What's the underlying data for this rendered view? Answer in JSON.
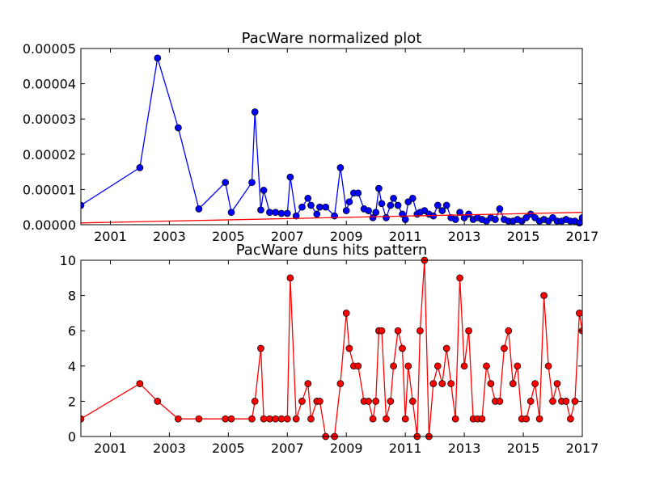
{
  "chart_data": [
    {
      "type": "line",
      "title": "PacWare normalized plot",
      "xlabel": "",
      "ylabel": "",
      "xlim": [
        2000.0,
        2017.0
      ],
      "ylim": [
        0,
        5e-05
      ],
      "xticks": [
        2001,
        2003,
        2005,
        2007,
        2009,
        2011,
        2013,
        2015,
        2017
      ],
      "yticks": [
        "0.00000",
        "0.00001",
        "0.00002",
        "0.00003",
        "0.00004",
        "0.00005"
      ],
      "grid": false,
      "series": [
        {
          "color": "#0000ff",
          "marker": "circle",
          "x": [
            2000.0,
            2002.0,
            2002.6,
            2003.3,
            2004.0,
            2004.9,
            2005.1,
            2005.8,
            2005.9,
            2006.1,
            2006.2,
            2006.4,
            2006.6,
            2006.8,
            2007.0,
            2007.1,
            2007.3,
            2007.5,
            2007.7,
            2007.8,
            2008.0,
            2008.1,
            2008.3,
            2008.6,
            2008.8,
            2009.0,
            2009.1,
            2009.25,
            2009.4,
            2009.6,
            2009.75,
            2009.9,
            2010.0,
            2010.1,
            2010.2,
            2010.35,
            2010.5,
            2010.6,
            2010.75,
            2010.9,
            2011.0,
            2011.1,
            2011.25,
            2011.4,
            2011.5,
            2011.65,
            2011.8,
            2011.95,
            2012.1,
            2012.25,
            2012.4,
            2012.55,
            2012.7,
            2012.85,
            2013.0,
            2013.15,
            2013.3,
            2013.45,
            2013.6,
            2013.75,
            2013.9,
            2014.05,
            2014.2,
            2014.35,
            2014.5,
            2014.65,
            2014.8,
            2014.95,
            2015.1,
            2015.25,
            2015.4,
            2015.55,
            2015.7,
            2015.85,
            2016.0,
            2016.15,
            2016.3,
            2016.45,
            2016.6,
            2016.75,
            2016.9,
            2017.0
          ],
          "y": [
            5.5e-06,
            1.62e-05,
            4.73e-05,
            2.75e-05,
            4.5e-06,
            1.2e-05,
            3.5e-06,
            1.2e-05,
            3.2e-05,
            4.2e-06,
            9.8e-06,
            3.5e-06,
            3.5e-06,
            3.2e-06,
            3.2e-06,
            1.35e-05,
            2.5e-06,
            5e-06,
            7.5e-06,
            5.5e-06,
            3e-06,
            5e-06,
            5e-06,
            2.5e-06,
            1.62e-05,
            4e-06,
            6.5e-06,
            9e-06,
            9e-06,
            4.5e-06,
            4e-06,
            2e-06,
            3.5e-06,
            1.03e-05,
            6e-06,
            2e-06,
            5.5e-06,
            7.5e-06,
            5.5e-06,
            3e-06,
            1.5e-06,
            6.5e-06,
            7.5e-06,
            3e-06,
            3.5e-06,
            4e-06,
            3e-06,
            2.5e-06,
            5.5e-06,
            4e-06,
            5.5e-06,
            2e-06,
            1.5e-06,
            3.5e-06,
            2e-06,
            3e-06,
            1.5e-06,
            2e-06,
            1.5e-06,
            1e-06,
            2e-06,
            1.5e-06,
            4.5e-06,
            1.5e-06,
            1e-06,
            1e-06,
            1.5e-06,
            1e-06,
            2e-06,
            3e-06,
            2e-06,
            1e-06,
            1.5e-06,
            1e-06,
            2e-06,
            1e-06,
            1e-06,
            1.5e-06,
            1e-06,
            1e-06,
            5e-07,
            2e-06
          ]
        },
        {
          "color": "#ff0000",
          "marker": "none",
          "x": [
            2000.0,
            2017.0
          ],
          "y": [
            5e-07,
            3.5e-06
          ]
        }
      ]
    },
    {
      "type": "line",
      "title": "PacWare duns hits pattern",
      "xlabel": "",
      "ylabel": "",
      "xlim": [
        2000.0,
        2017.0
      ],
      "ylim": [
        0,
        10
      ],
      "xticks": [
        2001,
        2003,
        2005,
        2007,
        2009,
        2011,
        2013,
        2015,
        2017
      ],
      "yticks": [
        "0",
        "2",
        "4",
        "6",
        "8",
        "10"
      ],
      "grid": false,
      "series": [
        {
          "color": "#ff0000",
          "marker": "circle",
          "x": [
            2000.0,
            2002.0,
            2002.6,
            2003.3,
            2004.0,
            2004.9,
            2005.1,
            2005.8,
            2005.9,
            2006.1,
            2006.2,
            2006.4,
            2006.6,
            2006.8,
            2007.0,
            2007.1,
            2007.3,
            2007.5,
            2007.7,
            2007.8,
            2008.0,
            2008.1,
            2008.3,
            2008.6,
            2008.8,
            2009.0,
            2009.1,
            2009.25,
            2009.4,
            2009.6,
            2009.75,
            2009.9,
            2010.0,
            2010.1,
            2010.2,
            2010.35,
            2010.5,
            2010.6,
            2010.75,
            2010.9,
            2011.0,
            2011.1,
            2011.25,
            2011.4,
            2011.5,
            2011.65,
            2011.8,
            2011.95,
            2012.1,
            2012.25,
            2012.4,
            2012.55,
            2012.7,
            2012.85,
            2013.0,
            2013.15,
            2013.3,
            2013.45,
            2013.6,
            2013.75,
            2013.9,
            2014.05,
            2014.2,
            2014.35,
            2014.5,
            2014.65,
            2014.8,
            2014.95,
            2015.1,
            2015.25,
            2015.4,
            2015.55,
            2015.7,
            2015.85,
            2016.0,
            2016.15,
            2016.3,
            2016.45,
            2016.6,
            2016.75,
            2016.9,
            2017.0
          ],
          "y": [
            1,
            3,
            2,
            1,
            1,
            1,
            1,
            1,
            2,
            5,
            1,
            1,
            1,
            1,
            1,
            9,
            1,
            2,
            3,
            1,
            2,
            2,
            0,
            0,
            3,
            7,
            5,
            4,
            4,
            2,
            2,
            1,
            2,
            6,
            6,
            1,
            2,
            4,
            6,
            5,
            1,
            4,
            2,
            0,
            6,
            10,
            0,
            3,
            4,
            3,
            5,
            3,
            1,
            9,
            4,
            6,
            1,
            1,
            1,
            4,
            3,
            2,
            2,
            5,
            6,
            3,
            4,
            1,
            1,
            2,
            3,
            1,
            8,
            4,
            2,
            3,
            2,
            2,
            1,
            2,
            7,
            6
          ]
        }
      ]
    }
  ]
}
